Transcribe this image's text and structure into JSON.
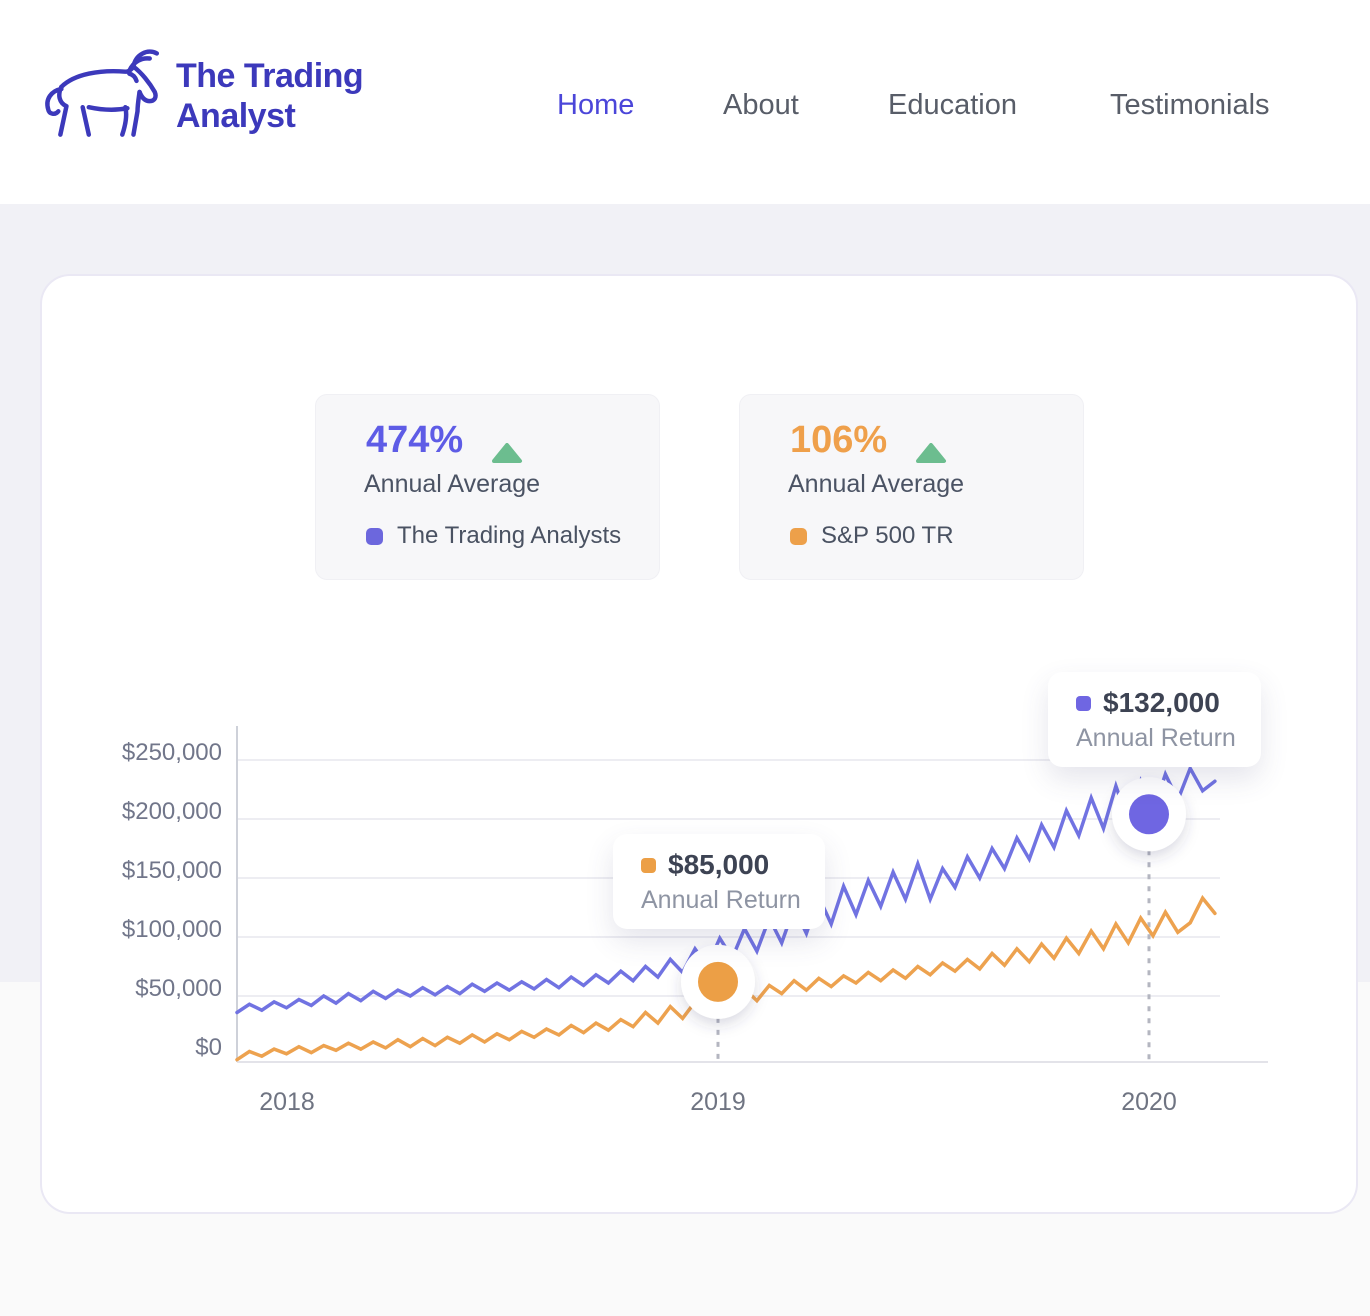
{
  "header": {
    "brand": {
      "line1": "The Trading",
      "line2": "Analyst"
    },
    "nav": [
      {
        "label": "Home",
        "active": true
      },
      {
        "label": "About",
        "active": false
      },
      {
        "label": "Education",
        "active": false
      },
      {
        "label": "Testimonials",
        "active": false
      }
    ]
  },
  "colors": {
    "brand_indigo": "#3c39bb",
    "nav_active": "#4b46d9",
    "line_purple": "#7173e2",
    "line_orange": "#eda24f",
    "trend_green": "#6cbd8f",
    "page_bg": "#f1f1f6",
    "axis_text": "#71768a"
  },
  "stats": [
    {
      "value": "474%",
      "value_color": "#5e5ce6",
      "label": "Annual Average",
      "legend": "The Trading Analysts",
      "swatch_color": "#6c67dd"
    },
    {
      "value": "106%",
      "value_color": "#efa04b",
      "label": "Annual Average",
      "legend": "S&P 500 TR",
      "swatch_color": "#eda04a"
    }
  ],
  "chart_data": {
    "type": "line",
    "x_start": 2017.884,
    "x_end": 2020.153,
    "x_ticks": [
      2018,
      2019,
      2020
    ],
    "x_tick_labels": [
      "2018",
      "2019",
      "2020"
    ],
    "y_ticks": [
      0,
      50000,
      100000,
      150000,
      200000,
      250000
    ],
    "y_tick_labels": [
      "$0",
      "$50,000",
      "$100,000",
      "$150,000",
      "$200,000",
      "$250,000"
    ],
    "ylim": [
      -12000,
      272000
    ],
    "grid": "horizontal",
    "legend_position": "top-cards",
    "series": [
      {
        "name": "S&P 500 TR",
        "color": "#eda24f",
        "values_usd": [
          -4000,
          3000,
          -1000,
          5000,
          1000,
          7000,
          2000,
          8000,
          4000,
          10000,
          5000,
          11000,
          6000,
          13000,
          7000,
          14000,
          8000,
          15000,
          10000,
          17000,
          11000,
          18000,
          13000,
          20000,
          15000,
          22000,
          17000,
          25000,
          19000,
          27000,
          21000,
          30000,
          24000,
          36000,
          27000,
          41000,
          31000,
          45000,
          35000,
          49000,
          40000,
          56000,
          46000,
          59000,
          52000,
          63000,
          55000,
          65000,
          58000,
          67000,
          61000,
          70000,
          63000,
          72000,
          65000,
          75000,
          68000,
          78000,
          71000,
          81000,
          73000,
          86000,
          76000,
          90000,
          79000,
          94000,
          82000,
          99000,
          86000,
          105000,
          90000,
          111000,
          95000,
          116000,
          101000,
          121000,
          104000,
          112000,
          133000,
          120000
        ]
      },
      {
        "name": "The Trading Analysts",
        "color": "#7173e2",
        "values_usd": [
          36000,
          43000,
          38000,
          45000,
          40000,
          47000,
          42000,
          50000,
          44000,
          52000,
          46000,
          54000,
          48000,
          55000,
          50000,
          57000,
          51000,
          58000,
          52000,
          60000,
          54000,
          61000,
          55000,
          62000,
          56000,
          64000,
          57000,
          66000,
          59000,
          68000,
          61000,
          71000,
          63000,
          75000,
          66000,
          81000,
          70000,
          90000,
          75000,
          99000,
          82000,
          107000,
          88000,
          116000,
          95000,
          125000,
          103000,
          134000,
          111000,
          143000,
          119000,
          148000,
          126000,
          155000,
          132000,
          162000,
          132000,
          158000,
          142000,
          168000,
          150000,
          175000,
          158000,
          184000,
          166000,
          195000,
          176000,
          207000,
          186000,
          218000,
          192000,
          228000,
          198000,
          232000,
          206000,
          238000,
          216000,
          243000,
          224000,
          232000
        ]
      }
    ],
    "annotations": [
      {
        "series": "S&P 500 TR",
        "x": 2019,
        "y_usd": 62000,
        "label_value": "$85,000",
        "label_text": "Annual Return",
        "color": "#ec9f46"
      },
      {
        "series": "The Trading Analysts",
        "x": 2020,
        "y_usd": 204000,
        "label_value": "$132,000",
        "label_text": "Annual Return",
        "color": "#6f66e2"
      }
    ]
  }
}
